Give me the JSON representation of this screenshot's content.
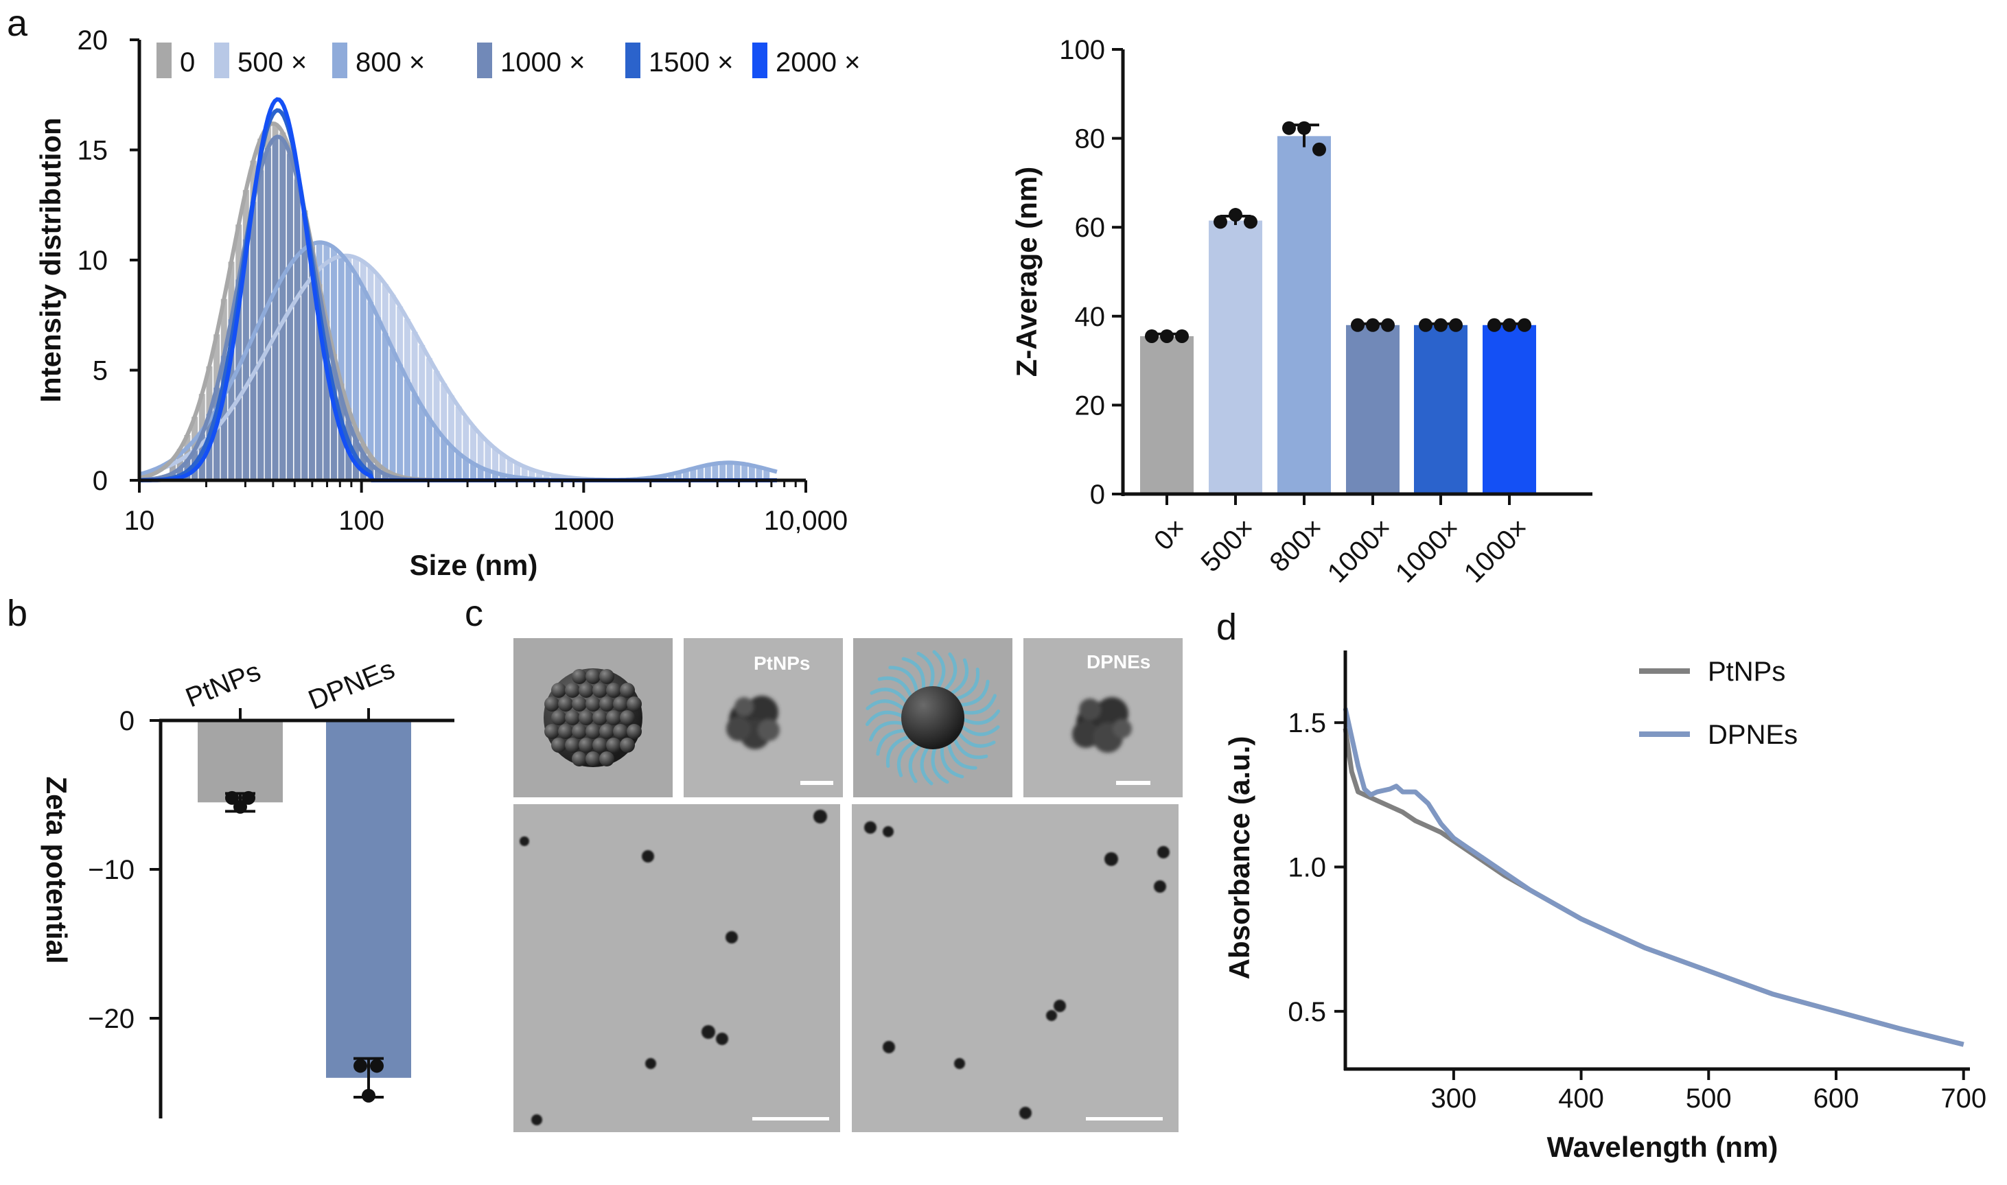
{
  "panels": {
    "a": "a",
    "b": "b",
    "c": "c",
    "d": "d"
  },
  "colors": {
    "c0": "#a8a8a8",
    "c500": "#b8c8e6",
    "c800": "#8fabda",
    "c1000": "#7189b8",
    "c1500": "#2b63cc",
    "c2000": "#1450f5",
    "pt": "#a5a5a5",
    "dpne": "#7089b5",
    "line_pt": "#808080",
    "line_dpne": "#7f97c2"
  },
  "chart_data": [
    {
      "id": "a_left",
      "type": "line",
      "title": "",
      "xlabel": "Size (nm)",
      "ylabel": "Intensity distribution",
      "xscale": "log",
      "xlim": [
        10,
        10000
      ],
      "ylim": [
        0,
        20
      ],
      "xticks": [
        10,
        100,
        1000,
        10000
      ],
      "xtick_labels": [
        "10",
        "100",
        "1000",
        "10,000"
      ],
      "yticks": [
        0,
        5,
        10,
        15,
        20
      ],
      "ytick_labels": [
        "0",
        "5",
        "10",
        "15",
        "20"
      ],
      "legend_position": "top",
      "series": [
        {
          "name": "0",
          "color_key": "c0",
          "peak_size": 40,
          "peak": 16.2,
          "sigma_log": 0.19,
          "bars": true
        },
        {
          "name": "500 ×",
          "color_key": "c500",
          "peak_size": 85,
          "peak": 10.2,
          "sigma_log": 0.34,
          "bars": true
        },
        {
          "name": "800 ×",
          "color_key": "c800",
          "peak_size": 65,
          "peak": 10.8,
          "sigma_log": 0.3,
          "bars": true,
          "secondary": {
            "peak_size": 4500,
            "peak": 0.8,
            "sigma_log": 0.18
          }
        },
        {
          "name": "1000 ×",
          "color_key": "c1000",
          "peak_size": 42,
          "peak": 15.6,
          "sigma_log": 0.17,
          "bars": true
        },
        {
          "name": "1500 ×",
          "color_key": "c1500",
          "peak_size": 42,
          "peak": 16.8,
          "sigma_log": 0.15,
          "bars": false
        },
        {
          "name": "2000 ×",
          "color_key": "c2000",
          "peak_size": 42,
          "peak": 17.3,
          "sigma_log": 0.14,
          "bars": false
        }
      ]
    },
    {
      "id": "a_right",
      "type": "bar",
      "ylabel": "Z-Average (nm)",
      "xlabel": "",
      "ylim": [
        0,
        100
      ],
      "yticks": [
        0,
        20,
        40,
        60,
        80,
        100
      ],
      "ytick_labels": [
        "0",
        "20",
        "40",
        "60",
        "80",
        "100"
      ],
      "categories": [
        "0×",
        "500×",
        "800×",
        "1000×",
        "1000×",
        "1000×"
      ],
      "values": [
        35.5,
        61.5,
        80.5,
        38,
        38,
        38
      ],
      "errors": [
        0.5,
        1.0,
        2.5,
        0.3,
        0.3,
        0.3
      ],
      "points": [
        [
          35.5,
          35.5,
          35.5
        ],
        [
          61.2,
          62.8,
          61.2
        ],
        [
          82.3,
          82.3,
          77.5
        ],
        [
          38,
          38,
          38
        ],
        [
          38,
          38,
          38
        ],
        [
          38,
          38,
          38
        ]
      ],
      "color_keys": [
        "c0",
        "c500",
        "c800",
        "c1000",
        "c1500",
        "c2000"
      ]
    },
    {
      "id": "b",
      "type": "bar",
      "ylabel": "Zeta potential",
      "xlabel": "",
      "ylim": [
        -26,
        0
      ],
      "yticks": [
        0,
        -10,
        -20
      ],
      "ytick_labels": [
        "0",
        "−10",
        "−20"
      ],
      "categories": [
        "PtNPs",
        "DPNEs"
      ],
      "values": [
        -5.5,
        -24
      ],
      "errors": [
        0.6,
        1.3
      ],
      "points": [
        [
          -5.2,
          -5.2,
          -5.8
        ],
        [
          -23.2,
          -23.2,
          -25.2
        ]
      ],
      "color_keys": [
        "pt",
        "dpne"
      ]
    },
    {
      "id": "d",
      "type": "line",
      "xlabel": "Wavelength (nm)",
      "ylabel": "Absorbance (a.u.)",
      "xlim": [
        215,
        705
      ],
      "ylim": [
        0.3,
        1.75
      ],
      "xticks": [
        300,
        400,
        500,
        600,
        700
      ],
      "xtick_labels": [
        "300",
        "400",
        "500",
        "600",
        "700"
      ],
      "yticks": [
        0.5,
        1.0,
        1.5
      ],
      "ytick_labels": [
        "0.5",
        "1.0",
        "1.5"
      ],
      "legend_position": "top-right",
      "series": [
        {
          "name": "PtNPs",
          "color_key": "line_pt",
          "x": [
            215,
            220,
            225,
            230,
            240,
            250,
            260,
            270,
            280,
            290,
            300,
            320,
            340,
            360,
            380,
            400,
            450,
            500,
            550,
            600,
            650,
            700
          ],
          "y": [
            1.48,
            1.33,
            1.26,
            1.25,
            1.23,
            1.21,
            1.19,
            1.16,
            1.14,
            1.12,
            1.09,
            1.03,
            0.97,
            0.92,
            0.87,
            0.82,
            0.72,
            0.64,
            0.56,
            0.5,
            0.44,
            0.385
          ]
        },
        {
          "name": "DPNEs",
          "color_key": "line_dpne",
          "x": [
            215,
            220,
            225,
            230,
            235,
            240,
            250,
            255,
            260,
            270,
            280,
            290,
            300,
            310,
            320,
            340,
            360,
            380,
            400,
            450,
            500,
            550,
            600,
            650,
            700
          ],
          "y": [
            1.55,
            1.45,
            1.35,
            1.27,
            1.25,
            1.26,
            1.27,
            1.28,
            1.26,
            1.26,
            1.22,
            1.15,
            1.1,
            1.07,
            1.04,
            0.98,
            0.92,
            0.87,
            0.82,
            0.72,
            0.64,
            0.56,
            0.5,
            0.44,
            0.385
          ]
        }
      ]
    }
  ],
  "tem": {
    "label_pt": "PtNPs",
    "label_dpne": "DPNEs"
  }
}
